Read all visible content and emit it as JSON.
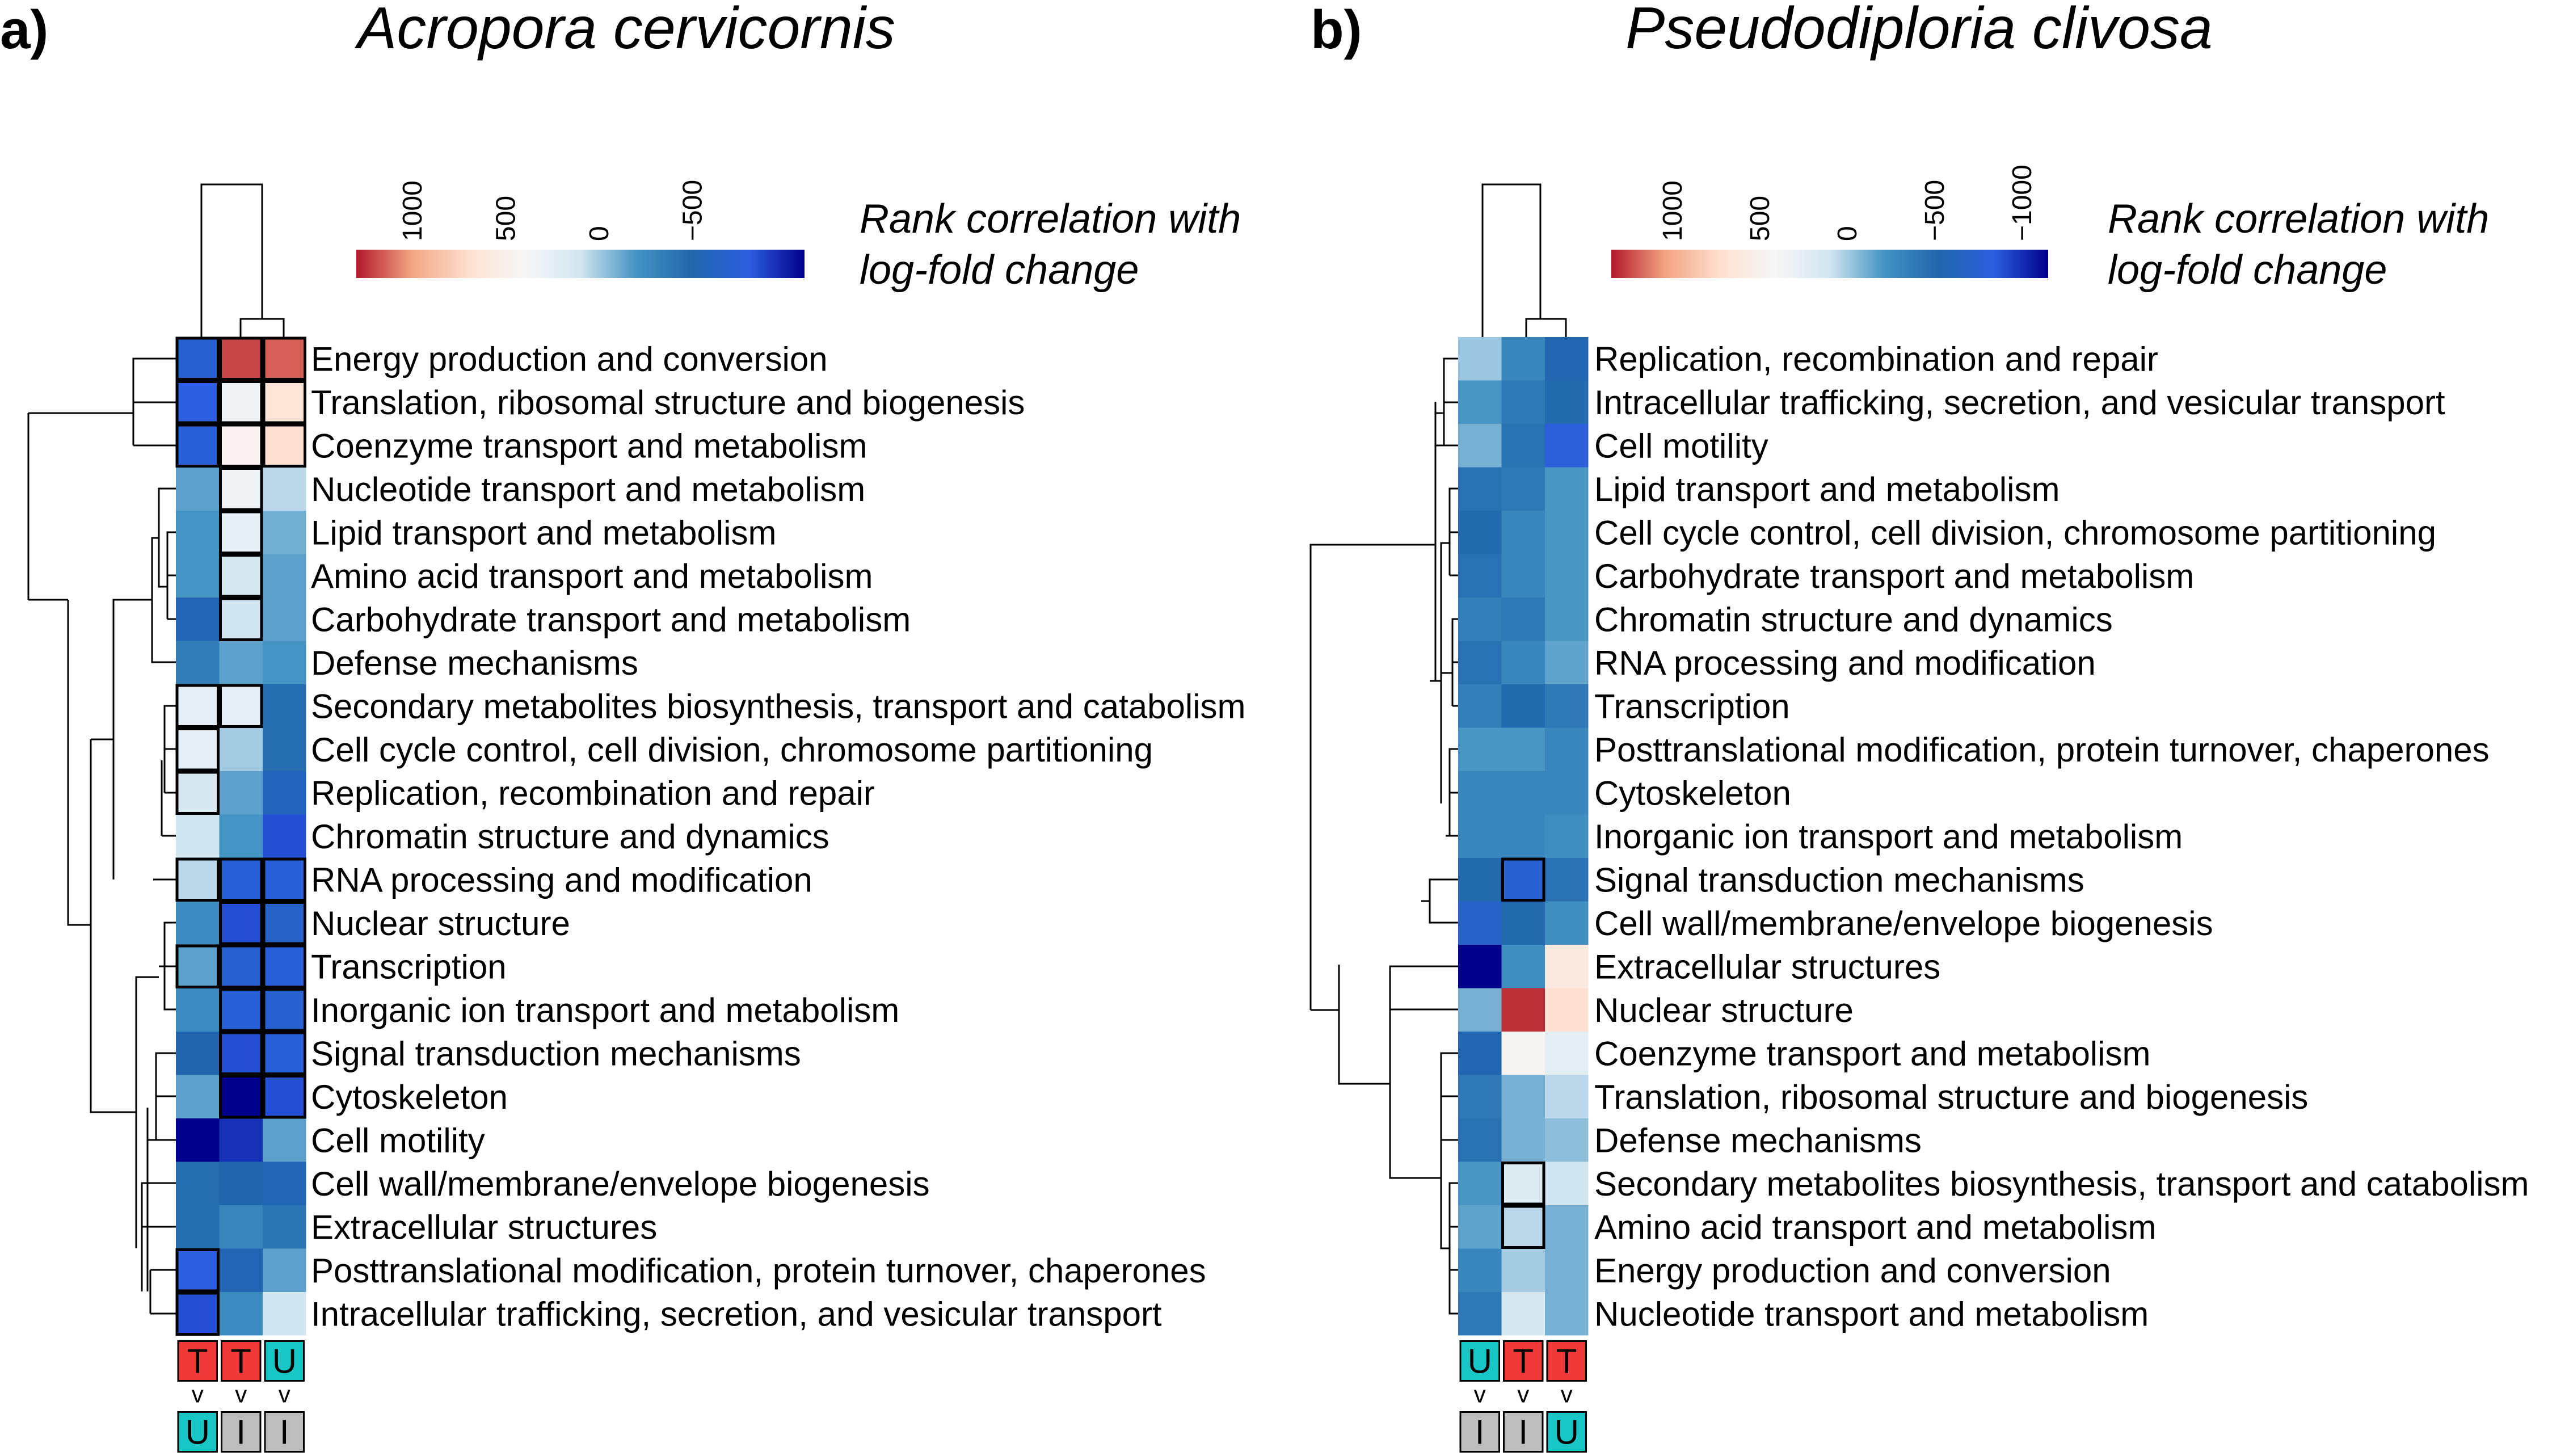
{
  "legend": {
    "title_line1": "Rank correlation with",
    "title_line2": "log-fold change",
    "colors": {
      "stops": [
        "#b2182b",
        "#f4a582",
        "#fde0d0",
        "#f7f7f7",
        "#d1e5f0",
        "#4393c3",
        "#2166ac",
        "#2c5fe0",
        "#00008b"
      ]
    }
  },
  "chart_data": [
    {
      "type": "heatmap",
      "panel_label": "a)",
      "title": "Acropora cervicornis",
      "color_scale": {
        "min": -1100,
        "max": 1300,
        "reversed": true,
        "ticks": [
          "1000",
          "500",
          "0",
          "−500"
        ],
        "tick_values": [
          1000,
          500,
          0,
          -500
        ]
      },
      "columns": [
        {
          "top": "T",
          "sign": "v",
          "bottom": "U",
          "top_color": "#f03a3a",
          "bottom_color": "#19c6c6"
        },
        {
          "top": "T",
          "sign": "v",
          "bottom": "I",
          "top_color": "#f03a3a",
          "bottom_color": "#bdbdbd"
        },
        {
          "top": "U",
          "sign": "v",
          "bottom": "I",
          "top_color": "#19c6c6",
          "bottom_color": "#bdbdbd"
        }
      ],
      "rows": [
        "Energy production and conversion",
        "Translation, ribosomal structure and biogenesis",
        "Coenzyme transport and metabolism",
        "Nucleotide transport and metabolism",
        "Lipid transport and metabolism",
        "Amino acid transport and metabolism",
        "Carbohydrate transport and metabolism",
        "Defense mechanisms",
        "Secondary metabolites biosynthesis, transport and catabolism",
        "Cell cycle control, cell division, chromosome partitioning",
        "Replication, recombination and repair",
        "Chromatin structure and dynamics",
        "RNA processing and modification",
        "Nuclear structure",
        "Transcription",
        "Inorganic ion transport and metabolism",
        "Signal transduction mechanisms",
        "Cytoskeleton",
        "Cell motility",
        "Cell wall/membrane/envelope biogenesis",
        "Extracellular structures",
        "Posttranslational modification, protein turnover, chaperones",
        "Intracellular trafficking, secretion, and vesicular transport"
      ],
      "values": [
        [
          -700,
          1200,
          1150
        ],
        [
          -800,
          350,
          650
        ],
        [
          -750,
          450,
          700
        ],
        [
          -150,
          350,
          50
        ],
        [
          -200,
          250,
          -100
        ],
        [
          -200,
          150,
          -150
        ],
        [
          -550,
          100,
          -150
        ],
        [
          -350,
          -150,
          -200
        ],
        [
          250,
          250,
          -450
        ],
        [
          250,
          0,
          -450
        ],
        [
          150,
          -150,
          -600
        ],
        [
          100,
          -200,
          -850
        ],
        [
          50,
          -750,
          -750
        ],
        [
          -250,
          -850,
          -650
        ],
        [
          -150,
          -700,
          -750
        ],
        [
          -250,
          -750,
          -700
        ],
        [
          -500,
          -850,
          -750
        ],
        [
          -150,
          -1100,
          -850
        ],
        [
          -1100,
          -950,
          -150
        ],
        [
          -450,
          -500,
          -550
        ],
        [
          -450,
          -300,
          -400
        ],
        [
          -800,
          -550,
          -150
        ],
        [
          -850,
          -250,
          100
        ]
      ],
      "outlined": [
        [
          1,
          1,
          1
        ],
        [
          1,
          1,
          1
        ],
        [
          1,
          1,
          1
        ],
        [
          0,
          1,
          0
        ],
        [
          0,
          1,
          0
        ],
        [
          0,
          1,
          0
        ],
        [
          0,
          1,
          0
        ],
        [
          0,
          0,
          0
        ],
        [
          1,
          1,
          0
        ],
        [
          1,
          0,
          0
        ],
        [
          1,
          0,
          0
        ],
        [
          0,
          0,
          0
        ],
        [
          1,
          1,
          1
        ],
        [
          0,
          1,
          1
        ],
        [
          1,
          1,
          1
        ],
        [
          0,
          1,
          1
        ],
        [
          0,
          1,
          1
        ],
        [
          0,
          1,
          1
        ],
        [
          0,
          0,
          0
        ],
        [
          0,
          0,
          0
        ],
        [
          0,
          0,
          0
        ],
        [
          1,
          0,
          0
        ],
        [
          1,
          0,
          0
        ]
      ]
    },
    {
      "type": "heatmap",
      "panel_label": "b)",
      "title": "Pseudodiploria clivosa",
      "color_scale": {
        "min": -1150,
        "max": 1350,
        "reversed": true,
        "ticks": [
          "1000",
          "500",
          "0",
          "−500",
          "−1000"
        ],
        "tick_values": [
          1000,
          500,
          0,
          -500,
          -1000
        ]
      },
      "columns": [
        {
          "top": "U",
          "sign": "v",
          "bottom": "I",
          "top_color": "#19c6c6",
          "bottom_color": "#bdbdbd"
        },
        {
          "top": "T",
          "sign": "v",
          "bottom": "I",
          "top_color": "#f03a3a",
          "bottom_color": "#bdbdbd"
        },
        {
          "top": "T",
          "sign": "v",
          "bottom": "U",
          "top_color": "#f03a3a",
          "bottom_color": "#19c6c6"
        }
      ],
      "rows": [
        "Replication, recombination and repair",
        "Intracellular trafficking, secretion, and vesicular transport",
        "Cell motility",
        "Lipid transport and metabolism",
        "Cell cycle control, cell division, chromosome partitioning",
        "Carbohydrate transport and metabolism",
        "Chromatin structure and dynamics",
        "RNA processing and modification",
        "Transcription",
        "Posttranslational modification, protein turnover, chaperones",
        "Cytoskeleton",
        "Inorganic ion transport and metabolism",
        "Signal transduction mechanisms",
        "Cell wall/membrane/envelope biogenesis",
        "Extracellular structures",
        "Nuclear structure",
        "Coenzyme transport and metabolism",
        "Translation, ribosomal structure and biogenesis",
        "Defense mechanisms",
        "Secondary metabolites biosynthesis, transport and catabolism",
        "Amino acid transport and metabolism",
        "Energy production and conversion",
        "Nucleotide transport and metabolism"
      ],
      "values": [
        [
          -20,
          -300,
          -550
        ],
        [
          -200,
          -400,
          -500
        ],
        [
          -100,
          -450,
          -800
        ],
        [
          -450,
          -400,
          -200
        ],
        [
          -500,
          -300,
          -200
        ],
        [
          -450,
          -300,
          -200
        ],
        [
          -350,
          -400,
          -200
        ],
        [
          -450,
          -300,
          -150
        ],
        [
          -350,
          -500,
          -400
        ],
        [
          -200,
          -200,
          -300
        ],
        [
          -300,
          -300,
          -300
        ],
        [
          -300,
          -300,
          -250
        ],
        [
          -500,
          -750,
          -450
        ],
        [
          -700,
          -500,
          -250
        ],
        [
          -1150,
          -250,
          600
        ],
        [
          -100,
          1300,
          700
        ],
        [
          -550,
          450,
          250
        ],
        [
          -400,
          -100,
          50
        ],
        [
          -450,
          -100,
          -50
        ],
        [
          -200,
          200,
          100
        ],
        [
          -150,
          50,
          -100
        ],
        [
          -300,
          0,
          -100
        ],
        [
          -400,
          150,
          -100
        ]
      ],
      "outlined": [
        [
          0,
          0,
          0
        ],
        [
          0,
          0,
          0
        ],
        [
          0,
          0,
          0
        ],
        [
          0,
          0,
          0
        ],
        [
          0,
          0,
          0
        ],
        [
          0,
          0,
          0
        ],
        [
          0,
          0,
          0
        ],
        [
          0,
          0,
          0
        ],
        [
          0,
          0,
          0
        ],
        [
          0,
          0,
          0
        ],
        [
          0,
          0,
          0
        ],
        [
          0,
          0,
          0
        ],
        [
          0,
          1,
          0
        ],
        [
          0,
          0,
          0
        ],
        [
          0,
          0,
          0
        ],
        [
          0,
          0,
          0
        ],
        [
          0,
          0,
          0
        ],
        [
          0,
          0,
          0
        ],
        [
          0,
          0,
          0
        ],
        [
          0,
          1,
          0
        ],
        [
          0,
          1,
          0
        ],
        [
          0,
          0,
          0
        ],
        [
          0,
          0,
          0
        ]
      ]
    }
  ]
}
